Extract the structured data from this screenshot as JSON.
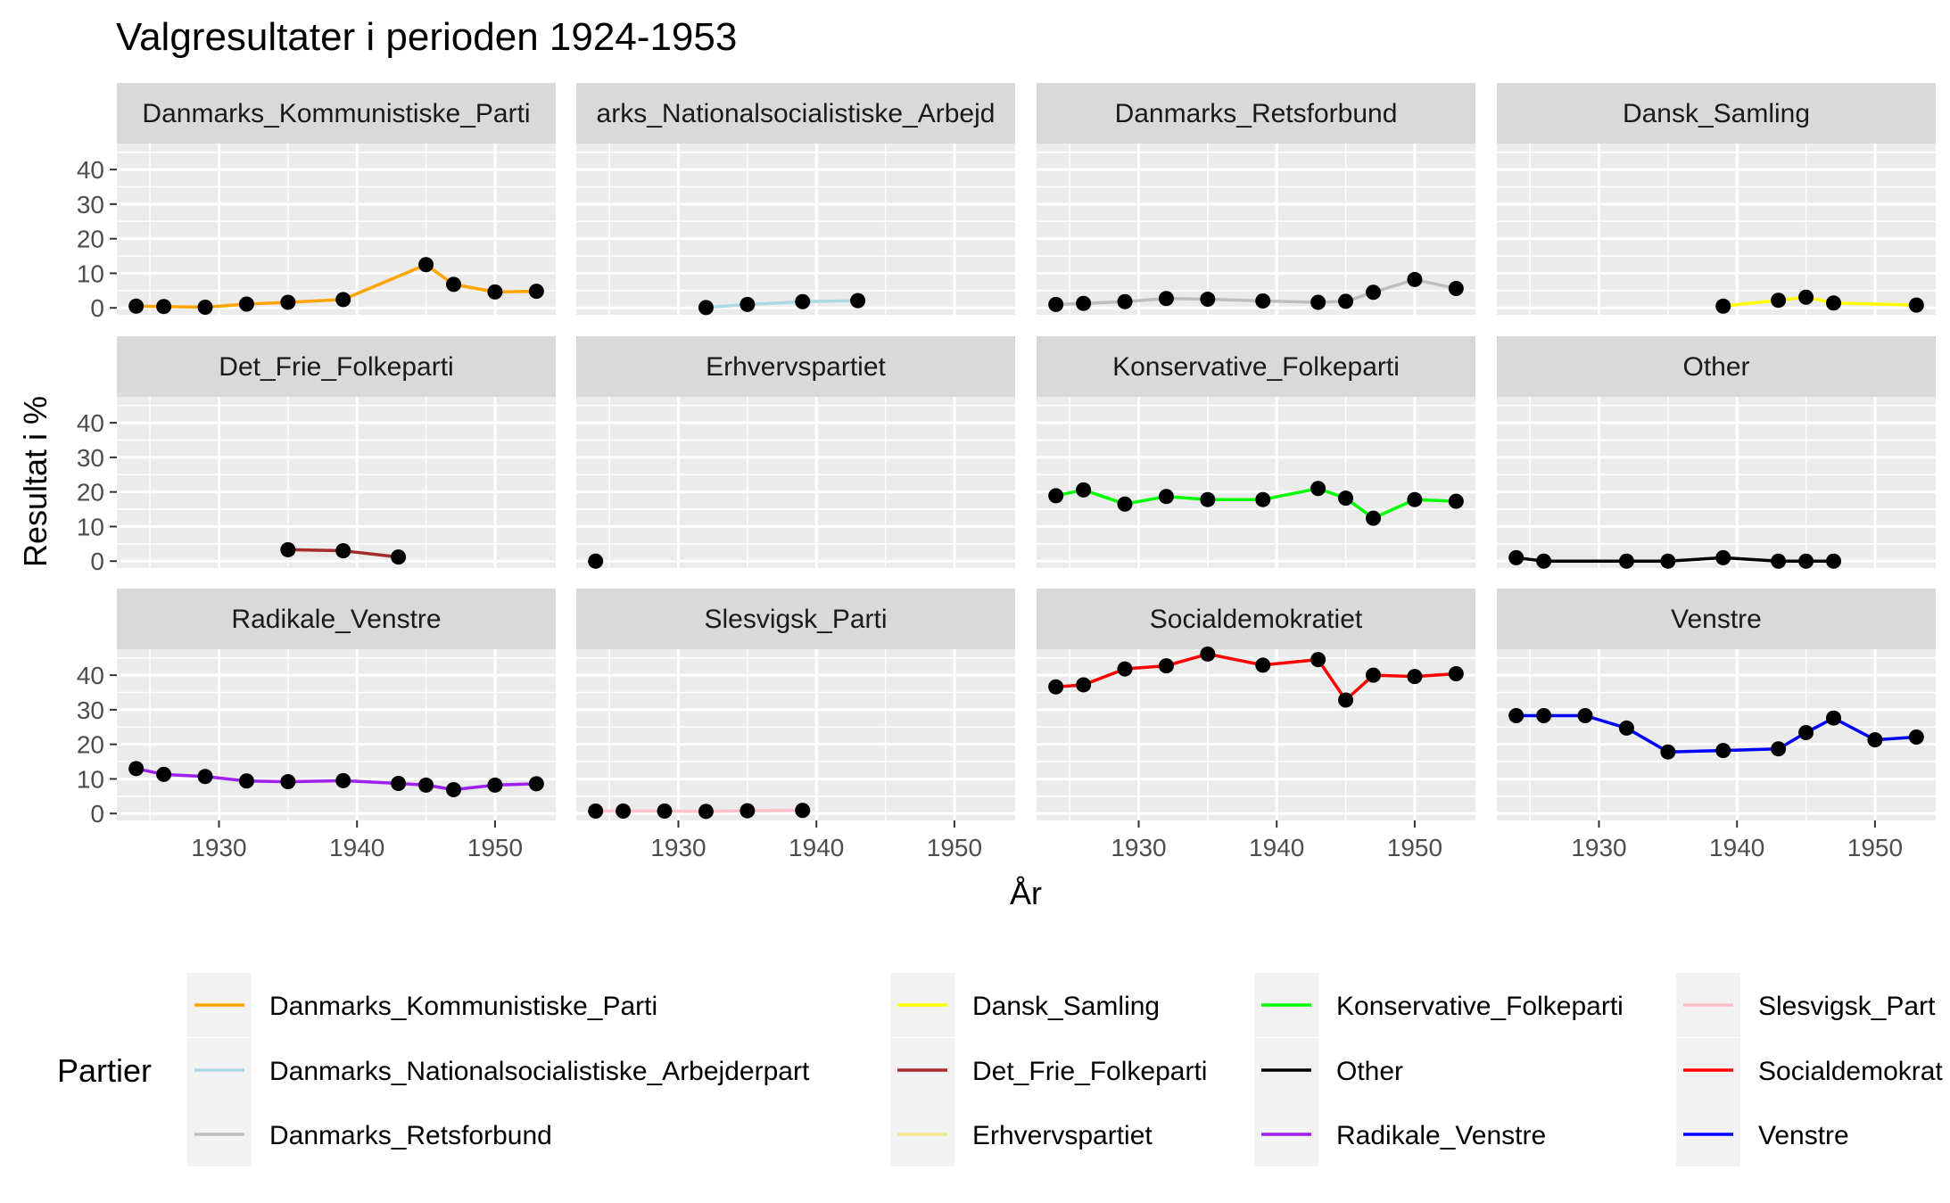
{
  "chart_data": {
    "type": "line",
    "title": "Valgresultater i perioden 1924-1953",
    "xlabel": "År",
    "ylabel": "Resultat i %",
    "xlim": [
      1922.6,
      1954.4
    ],
    "ylim": [
      -2.0,
      47.5
    ],
    "x_ticks": [
      1930,
      1940,
      1950
    ],
    "y_ticks": [
      0,
      10,
      20,
      30,
      40
    ],
    "grid": true,
    "legend_position": "bottom",
    "legend_title": "Partier",
    "series": [
      {
        "name": "Danmarks_Kommunistiske_Parti",
        "color": "#FFA500",
        "x": [
          1924,
          1926,
          1929,
          1932,
          1935,
          1939,
          1945,
          1947,
          1950,
          1953
        ],
        "y": [
          0.5,
          0.4,
          0.2,
          1.1,
          1.6,
          2.4,
          12.5,
          6.8,
          4.6,
          4.8
        ]
      },
      {
        "name": "Danmarks_Nationalsocialistiske_Arbejderpart",
        "color": "#ADD8E6",
        "x": [
          1932,
          1935,
          1939,
          1943
        ],
        "y": [
          0.1,
          1.0,
          1.8,
          2.1
        ]
      },
      {
        "name": "Danmarks_Retsforbund",
        "color": "#BEBEBE",
        "x": [
          1924,
          1926,
          1929,
          1932,
          1935,
          1939,
          1943,
          1945,
          1947,
          1950,
          1953
        ],
        "y": [
          1.0,
          1.3,
          1.8,
          2.7,
          2.5,
          2.0,
          1.6,
          1.9,
          4.5,
          8.2,
          5.6
        ]
      },
      {
        "name": "Dansk_Samling",
        "color": "#FFFF00",
        "x": [
          1939,
          1943,
          1945,
          1947,
          1953
        ],
        "y": [
          0.5,
          2.2,
          3.1,
          1.4,
          0.8
        ]
      },
      {
        "name": "Det_Frie_Folkeparti",
        "color": "#A52A2A",
        "x": [
          1935,
          1939,
          1943
        ],
        "y": [
          3.3,
          3.0,
          1.2
        ]
      },
      {
        "name": "Erhvervspartiet",
        "color": "#F0E68C",
        "x": [
          1924
        ],
        "y": [
          0.0
        ]
      },
      {
        "name": "Konservative_Folkeparti",
        "color": "#00FF00",
        "x": [
          1924,
          1926,
          1929,
          1932,
          1935,
          1939,
          1943,
          1945,
          1947,
          1950,
          1953
        ],
        "y": [
          18.9,
          20.6,
          16.5,
          18.7,
          17.8,
          17.8,
          21.0,
          18.2,
          12.4,
          17.8,
          17.3
        ]
      },
      {
        "name": "Other",
        "color": "#000000",
        "x": [
          1924,
          1926,
          1932,
          1935,
          1939,
          1943,
          1945,
          1947
        ],
        "y": [
          1.0,
          0.0,
          0.0,
          0.0,
          1.0,
          0.0,
          0.0,
          0.0
        ]
      },
      {
        "name": "Radikale_Venstre",
        "color": "#A020F0",
        "x": [
          1924,
          1926,
          1929,
          1932,
          1935,
          1939,
          1943,
          1945,
          1947,
          1950,
          1953
        ],
        "y": [
          13.0,
          11.3,
          10.7,
          9.4,
          9.2,
          9.5,
          8.7,
          8.2,
          6.9,
          8.2,
          8.6
        ]
      },
      {
        "name": "Slesvigsk_Parti",
        "color": "#FFC0CB",
        "x": [
          1924,
          1926,
          1929,
          1932,
          1935,
          1939
        ],
        "y": [
          0.7,
          0.7,
          0.7,
          0.6,
          0.8,
          0.9
        ]
      },
      {
        "name": "Socialdemokratiet",
        "color": "#FF0000",
        "x": [
          1924,
          1926,
          1929,
          1932,
          1935,
          1939,
          1943,
          1945,
          1947,
          1950,
          1953
        ],
        "y": [
          36.6,
          37.2,
          41.8,
          42.7,
          46.1,
          42.9,
          44.5,
          32.8,
          40.0,
          39.6,
          40.4
        ]
      },
      {
        "name": "Venstre",
        "color": "#0000FF",
        "x": [
          1924,
          1926,
          1929,
          1932,
          1935,
          1939,
          1943,
          1945,
          1947,
          1950,
          1953
        ],
        "y": [
          28.3,
          28.3,
          28.3,
          24.7,
          17.8,
          18.2,
          18.7,
          23.4,
          27.6,
          21.3,
          22.1
        ]
      }
    ],
    "panel_labels": [
      "Danmarks_Kommunistiske_Parti",
      "arks_Nationalsocialistiske_Arbejd",
      "Danmarks_Retsforbund",
      "Dansk_Samling",
      "Det_Frie_Folkeparti",
      "Erhvervspartiet",
      "Konservative_Folkeparti",
      "Other",
      "Radikale_Venstre",
      "Slesvigsk_Parti",
      "Socialdemokratiet",
      "Venstre"
    ],
    "legend_labels": [
      "Danmarks_Kommunistiske_Parti",
      "Danmarks_Nationalsocialistiske_Arbejderpart",
      "Danmarks_Retsforbund",
      "Dansk_Samling",
      "Det_Frie_Folkeparti",
      "Erhvervspartiet",
      "Konservative_Folkeparti",
      "Other",
      "Radikale_Venstre",
      "Slesvigsk_Part",
      "Socialdemokrat",
      "Venstre"
    ]
  }
}
